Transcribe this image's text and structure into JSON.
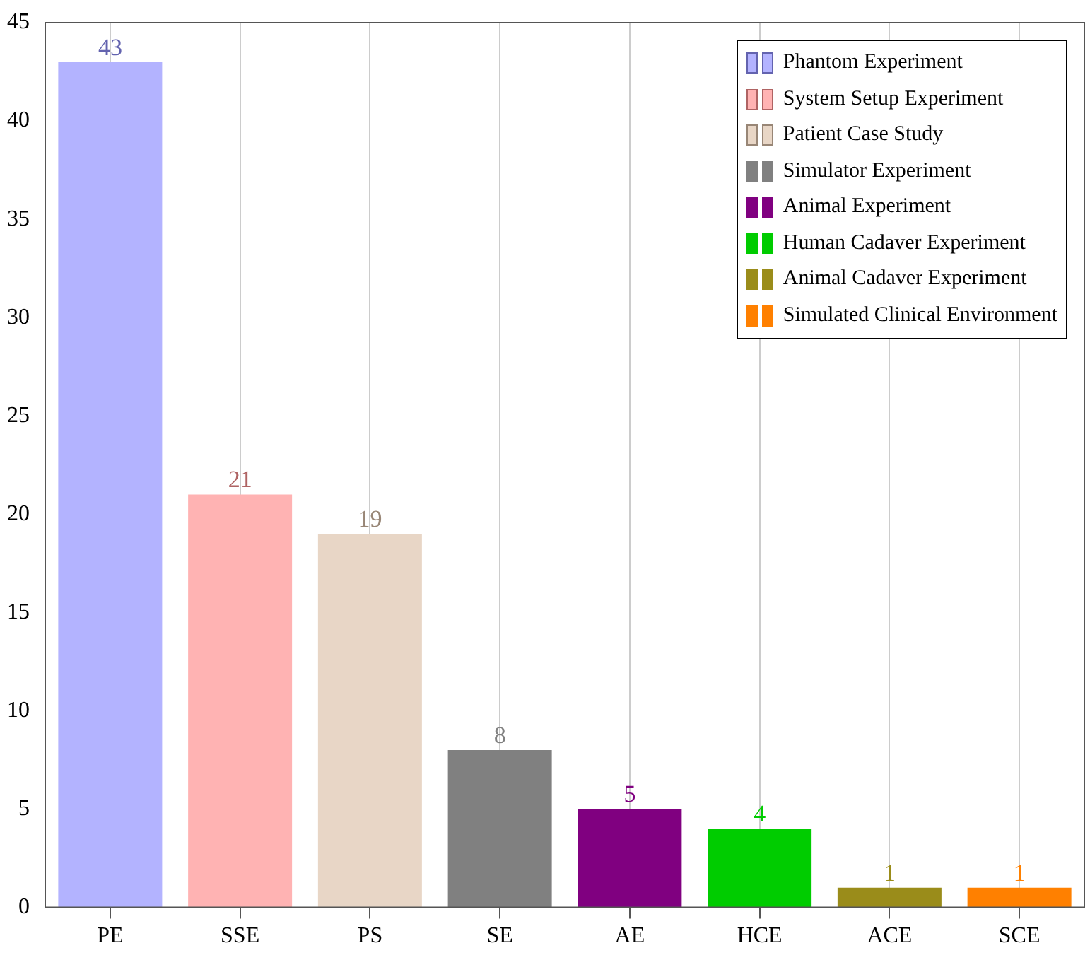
{
  "chart_data": {
    "type": "bar",
    "categories": [
      "PE",
      "SSE",
      "PS",
      "SE",
      "AE",
      "HCE",
      "ACE",
      "SCE"
    ],
    "series": [
      {
        "name": "Phantom Experiment",
        "color": "#b3b3ff",
        "values": [
          43,
          null,
          null,
          null,
          null,
          null,
          null,
          null
        ]
      },
      {
        "name": "System Setup Experiment",
        "color": "#ffb3b3",
        "values": [
          null,
          21,
          null,
          null,
          null,
          null,
          null,
          null
        ]
      },
      {
        "name": "Patient Case Study",
        "color": "#e8d6c6",
        "values": [
          null,
          null,
          19,
          null,
          null,
          null,
          null,
          null
        ]
      },
      {
        "name": "Simulator Experiment",
        "color": "#808080",
        "values": [
          null,
          null,
          null,
          8,
          null,
          null,
          null,
          null
        ]
      },
      {
        "name": "Animal Experiment",
        "color": "#800080",
        "values": [
          null,
          null,
          null,
          null,
          5,
          null,
          null,
          null
        ]
      },
      {
        "name": "Human Cadaver Experiment",
        "color": "#00cc00",
        "values": [
          null,
          null,
          null,
          null,
          null,
          4,
          null,
          null
        ]
      },
      {
        "name": "Animal Cadaver Experiment",
        "color": "#9a8c1a",
        "values": [
          null,
          null,
          null,
          null,
          null,
          null,
          1,
          null
        ]
      },
      {
        "name": "Simulated Clinical Environment",
        "color": "#ff8000",
        "values": [
          null,
          null,
          null,
          null,
          null,
          null,
          null,
          1
        ]
      }
    ],
    "ylim": [
      0,
      45
    ],
    "yticks": [
      0,
      5,
      10,
      15,
      20,
      25,
      30,
      35,
      40,
      45
    ],
    "grid": "x",
    "legend": "top right",
    "data_labels": true
  }
}
